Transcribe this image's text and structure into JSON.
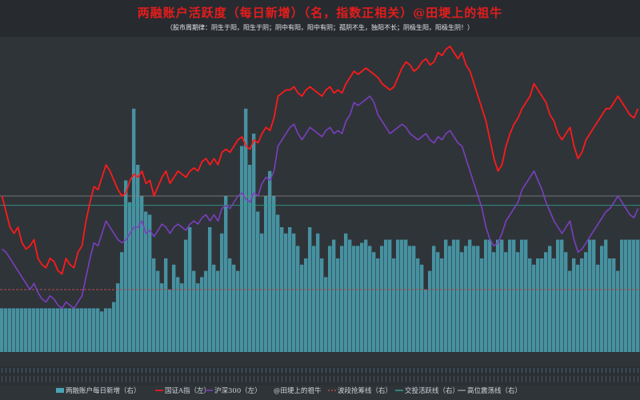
{
  "colors": {
    "background": "#2f3439",
    "bars": "#4aa3b4",
    "index_a": "#ff1a1a",
    "hs300": "#7b3fbf",
    "band_line": "#b84a4a",
    "active_line": "#2a9c8a",
    "high_line": "#8a8a8a"
  },
  "chart_data": {
    "type": "bar",
    "title": "两融账户活跃度（每日新增）（名，指数正相关）@田埂上的祖牛",
    "subtitle": "（股市周期律：阴生于阳，阳生于阴；阴中有阳，阳中有阴；孤阴不生，独阳不长；阴极生阳，阳极生阴！）",
    "legend": [
      {
        "key": "bars",
        "label": "两融账户每日新增（右）",
        "marker": "bar"
      },
      {
        "key": "index_a",
        "label": "国证A指（左）",
        "marker": "line"
      },
      {
        "key": "hs300",
        "label": "沪深300（左）",
        "marker": "line"
      },
      {
        "key": "watermark",
        "label": "@田埂上的祖牛",
        "marker": "none"
      },
      {
        "key": "band_line",
        "label": "波段抢筹线（右）",
        "marker": "dash"
      },
      {
        "key": "active_line",
        "label": "交投活跃线（右）",
        "marker": "line"
      },
      {
        "key": "high_line",
        "label": "高位震荡线（右）",
        "marker": "line"
      }
    ],
    "legend_position": "bottom",
    "y_right_range": [
      0,
      100
    ],
    "y_left_range": [
      0,
      100
    ],
    "reference_lines": {
      "band_line": 20,
      "active_line": 47,
      "high_line": 50
    },
    "x_points": 160,
    "series": [
      {
        "key": "bars",
        "values": [
          14,
          14,
          14,
          14,
          14,
          14,
          14,
          14,
          14,
          14,
          14,
          14,
          14,
          14,
          14,
          14,
          14,
          14,
          14,
          14,
          14,
          14,
          14,
          14,
          14,
          13,
          14,
          14,
          16,
          22,
          32,
          55,
          48,
          78,
          60,
          50,
          45,
          44,
          30,
          26,
          22,
          30,
          20,
          28,
          24,
          22,
          36,
          40,
          26,
          22,
          24,
          26,
          40,
          28,
          26,
          38,
          50,
          30,
          28,
          26,
          66,
          78,
          60,
          70,
          45,
          38,
          50,
          58,
          50,
          44,
          40,
          38,
          40,
          38,
          34,
          28,
          30,
          40,
          34,
          38,
          30,
          24,
          34,
          36,
          30,
          34,
          38,
          36,
          34,
          34,
          35,
          36,
          34,
          32,
          30,
          34,
          36,
          36,
          30,
          36,
          36,
          36,
          34,
          34,
          30,
          28,
          20,
          26,
          34,
          32,
          30,
          36,
          34,
          36,
          36,
          32,
          34,
          36,
          34,
          34,
          30,
          36,
          36,
          32,
          36,
          36,
          32,
          36,
          36,
          32,
          36,
          36,
          30,
          28,
          30,
          30,
          32,
          34,
          30,
          36,
          36,
          32,
          26,
          30,
          28,
          30,
          32,
          36,
          36,
          28,
          34,
          36,
          30,
          30,
          26,
          36,
          36,
          36,
          36,
          36
        ]
      },
      {
        "key": "index_a",
        "values": [
          50,
          45,
          40,
          38,
          40,
          35,
          33,
          34,
          36,
          30,
          28,
          27,
          30,
          29,
          26,
          25,
          30,
          28,
          27,
          32,
          34,
          42,
          48,
          53,
          52,
          56,
          60,
          58,
          55,
          52,
          50,
          51,
          55,
          57,
          56,
          58,
          54,
          55,
          50,
          53,
          56,
          58,
          54,
          56,
          58,
          57,
          56,
          58,
          59,
          58,
          61,
          62,
          60,
          62,
          60,
          64,
          65,
          64,
          66,
          68,
          69,
          66,
          65,
          68,
          67,
          70,
          72,
          71,
          75,
          82,
          83,
          84,
          84,
          85,
          83,
          82,
          84,
          85,
          84,
          83,
          82,
          84,
          85,
          83,
          84,
          83,
          86,
          88,
          90,
          89,
          90,
          91,
          90,
          89,
          88,
          86,
          85,
          84,
          85,
          88,
          91,
          93,
          92,
          90,
          91,
          93,
          94,
          92,
          93,
          96,
          95,
          97,
          98,
          96,
          94,
          96,
          92,
          90,
          86,
          82,
          78,
          74,
          68,
          62,
          58,
          60,
          66,
          70,
          73,
          75,
          78,
          80,
          82,
          86,
          84,
          82,
          80,
          76,
          74,
          70,
          68,
          70,
          72,
          66,
          62,
          64,
          68,
          70,
          72,
          74,
          76,
          78,
          78,
          80,
          82,
          80,
          78,
          76,
          75,
          78
        ]
      },
      {
        "key": "hs300",
        "values": [
          33,
          32,
          30,
          28,
          26,
          24,
          22,
          20,
          22,
          19,
          17,
          16,
          18,
          17,
          15,
          14,
          16,
          15,
          14,
          16,
          18,
          24,
          30,
          35,
          34,
          38,
          42,
          40,
          38,
          36,
          35,
          36,
          38,
          40,
          40,
          42,
          38,
          39,
          37,
          39,
          41,
          40,
          38,
          40,
          41,
          40,
          39,
          41,
          42,
          41,
          43,
          44,
          42,
          44,
          42,
          46,
          47,
          46,
          48,
          50,
          51,
          49,
          48,
          51,
          50,
          54,
          56,
          55,
          58,
          66,
          68,
          70,
          72,
          73,
          70,
          68,
          70,
          72,
          71,
          70,
          69,
          71,
          72,
          70,
          71,
          70,
          74,
          76,
          80,
          79,
          80,
          81,
          82,
          80,
          76,
          74,
          72,
          70,
          71,
          72,
          73,
          72,
          70,
          69,
          68,
          69,
          70,
          68,
          67,
          69,
          68,
          70,
          71,
          69,
          67,
          66,
          62,
          58,
          54,
          50,
          46,
          40,
          36,
          34,
          35,
          38,
          42,
          44,
          46,
          48,
          52,
          54,
          56,
          58,
          55,
          52,
          48,
          45,
          42,
          40,
          38,
          40,
          42,
          36,
          32,
          33,
          35,
          37,
          39,
          41,
          43,
          45,
          46,
          48,
          50,
          48,
          46,
          44,
          43,
          46
        ]
      }
    ]
  }
}
